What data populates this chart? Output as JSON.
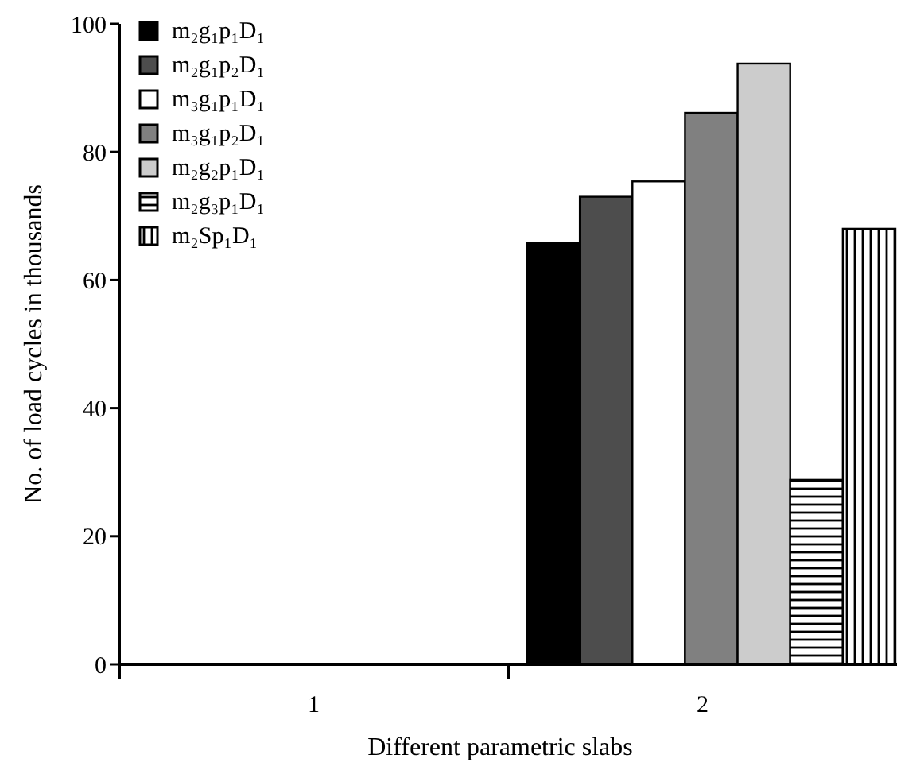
{
  "chart_data": {
    "type": "bar",
    "xlabel": "Different parametric slabs",
    "ylabel": "No. of load cycles in thousands",
    "categories": [
      "1",
      "2"
    ],
    "ylim": [
      0,
      100
    ],
    "yticks": [
      0,
      20,
      40,
      60,
      80,
      100
    ],
    "grid": false,
    "legend": "top left",
    "series": [
      {
        "name": "m₂g₁p₁D₁",
        "color": "#000000",
        "values": [
          null,
          65.8
        ]
      },
      {
        "name": "m₂g₁p₂D₁",
        "color": "#4d4d4d",
        "values": [
          null,
          73
        ]
      },
      {
        "name": "m₃g₁p₁D₁",
        "color": "#ffffff",
        "values": [
          null,
          75.4
        ]
      },
      {
        "name": "m₃g₁p₂D₁",
        "color": "#808080",
        "values": [
          null,
          86.1
        ]
      },
      {
        "name": "m₂g₂p₁D₁",
        "color": "#cccccc",
        "values": [
          null,
          93.8
        ]
      },
      {
        "name": "m₂g₃p₁D₁",
        "color": "#000000",
        "values": [
          null,
          28.8
        ]
      },
      {
        "name": "m₂Sp₁D₁",
        "color": "#000000",
        "values": [
          null,
          68
        ]
      }
    ]
  }
}
